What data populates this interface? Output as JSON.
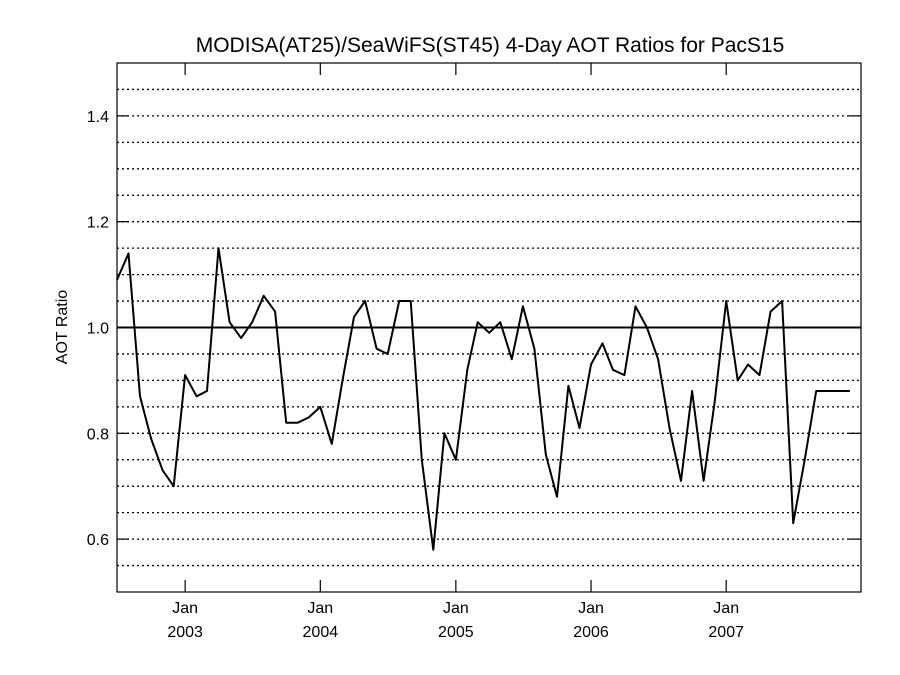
{
  "chart_data": {
    "type": "line",
    "title": "MODISA(AT25)/SeaWiFS(ST45) 4-Day AOT Ratios for PacS15",
    "ylabel": "AOT Ratio",
    "xlabel": "",
    "xlim": [
      "2002-07-01",
      "2007-12-31"
    ],
    "ylim": [
      0.5,
      1.5
    ],
    "y_ticks": [
      "0.6",
      "0.8",
      "1.0",
      "1.2",
      "1.4"
    ],
    "y_dotted_gridlines": [
      0.55,
      0.6,
      0.65,
      0.7,
      0.75,
      0.8,
      0.85,
      0.9,
      0.95,
      1.05,
      1.1,
      1.15,
      1.2,
      1.25,
      1.3,
      1.35,
      1.4,
      1.45
    ],
    "reference_line": 1.0,
    "x_ticks": [
      {
        "date": "2003-01-01",
        "month": "Jan",
        "year": "2003"
      },
      {
        "date": "2004-01-01",
        "month": "Jan",
        "year": "2004"
      },
      {
        "date": "2005-01-01",
        "month": "Jan",
        "year": "2005"
      },
      {
        "date": "2006-01-01",
        "month": "Jan",
        "year": "2006"
      },
      {
        "date": "2007-01-01",
        "month": "Jan",
        "year": "2007"
      }
    ],
    "series": [
      {
        "line_color": "#000000",
        "x": [
          "2002-07-01",
          "2002-08-01",
          "2002-09-01",
          "2002-10-01",
          "2002-11-01",
          "2002-12-01",
          "2003-01-01",
          "2003-02-01",
          "2003-03-01",
          "2003-04-01",
          "2003-05-01",
          "2003-06-01",
          "2003-07-01",
          "2003-08-01",
          "2003-09-01",
          "2003-10-01",
          "2003-11-01",
          "2003-12-01",
          "2004-01-01",
          "2004-02-01",
          "2004-03-01",
          "2004-04-01",
          "2004-05-01",
          "2004-06-01",
          "2004-07-01",
          "2004-08-01",
          "2004-09-01",
          "2004-10-01",
          "2004-11-01",
          "2004-12-01",
          "2005-01-01",
          "2005-02-01",
          "2005-03-01",
          "2005-04-01",
          "2005-05-01",
          "2005-06-01",
          "2005-07-01",
          "2005-08-01",
          "2005-09-01",
          "2005-10-01",
          "2005-11-01",
          "2005-12-01",
          "2006-01-01",
          "2006-02-01",
          "2006-03-01",
          "2006-04-01",
          "2006-05-01",
          "2006-06-01",
          "2006-07-01",
          "2006-08-01",
          "2006-09-01",
          "2006-10-01",
          "2006-11-01",
          "2006-12-01",
          "2007-01-01",
          "2007-02-01",
          "2007-03-01",
          "2007-04-01",
          "2007-05-01",
          "2007-06-01",
          "2007-07-01",
          "2007-08-01",
          "2007-09-01",
          "2007-10-01",
          "2007-11-01",
          "2007-12-01"
        ],
        "y": [
          1.09,
          1.14,
          0.87,
          0.79,
          0.73,
          0.7,
          0.91,
          0.87,
          0.88,
          1.15,
          1.01,
          0.98,
          1.01,
          1.06,
          1.03,
          0.82,
          0.82,
          0.83,
          0.85,
          0.78,
          0.9,
          1.02,
          1.05,
          0.96,
          0.95,
          1.05,
          1.05,
          0.75,
          0.58,
          0.8,
          0.75,
          0.92,
          1.01,
          0.99,
          1.01,
          0.94,
          1.04,
          0.96,
          0.76,
          0.68,
          0.89,
          0.81,
          0.93,
          0.97,
          0.92,
          0.91,
          1.04,
          1.0,
          0.94,
          0.81,
          0.71,
          0.88,
          0.71,
          0.86,
          1.05,
          0.9,
          0.93,
          0.91,
          1.03,
          1.05,
          0.63,
          0.75,
          0.88,
          0.88,
          0.88,
          0.88
        ]
      }
    ],
    "grid": true,
    "legend": "none"
  }
}
